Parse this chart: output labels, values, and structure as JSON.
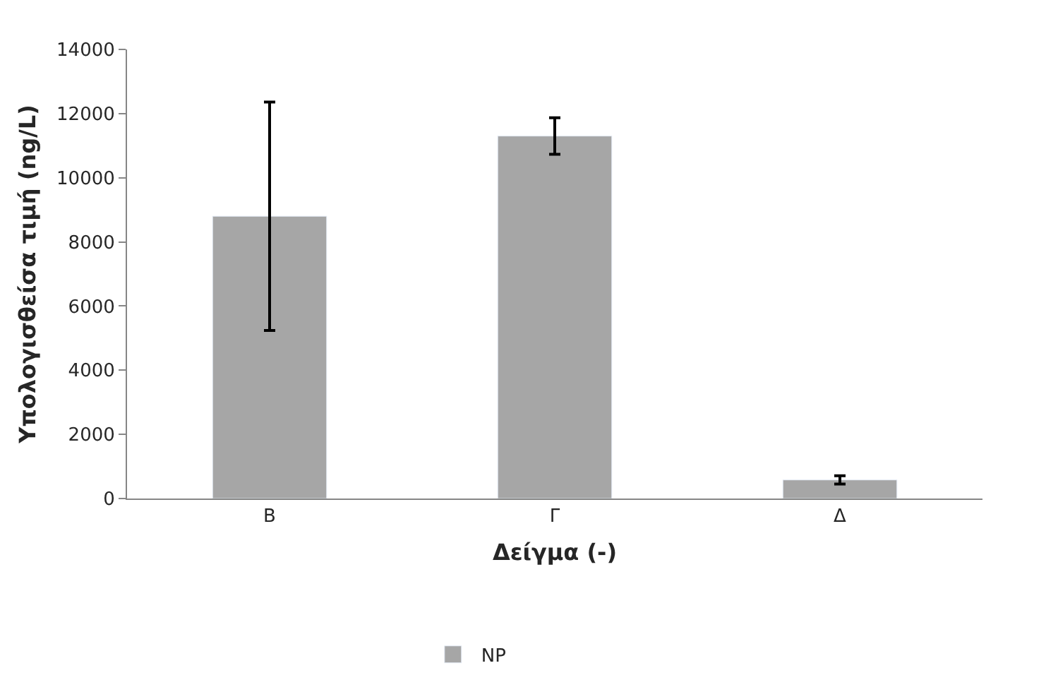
{
  "chart_data": {
    "type": "bar",
    "xlabel": "Δείγμα (-)",
    "ylabel": "Υπολογισθείσα τιμή (ng/L)",
    "categories": [
      "Β",
      "Γ",
      "Δ"
    ],
    "series": [
      {
        "name": "NP",
        "color": "#a6a6a6",
        "values": [
          8800,
          11300,
          580
        ],
        "errors": [
          3560,
          570,
          130
        ]
      }
    ],
    "ylim": [
      0,
      14000
    ],
    "yticks": [
      0,
      2000,
      4000,
      6000,
      8000,
      10000,
      12000,
      14000
    ],
    "legend": "bottom"
  }
}
